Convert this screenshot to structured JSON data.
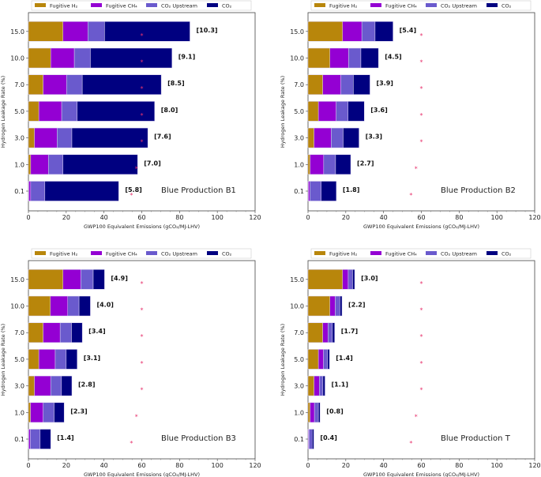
{
  "chart_data": [
    {
      "type": "bar",
      "orientation": "horizontal",
      "stacked": true,
      "title": "Blue Production B1",
      "xlabel": "GWP100 Equivalent Emissions (gCO₂/MJ-LHV)",
      "ylabel": "Hydrogen Leakage Rate (%)",
      "xlim": [
        0,
        120
      ],
      "xticks": [
        "0",
        "20",
        "40",
        "60",
        "80",
        "100",
        "120"
      ],
      "categories": [
        "0.1",
        "1.0",
        "3.0",
        "5.0",
        "7.0",
        "10.0",
        "15.0"
      ],
      "series": [
        {
          "name": "Fugitive H₂",
          "color": "#b8860b",
          "values": [
            0.2,
            1.2,
            3.2,
            5.5,
            7.8,
            11.8,
            18.3
          ]
        },
        {
          "name": "Fugitive CH₄",
          "color": "#9400d3",
          "values": [
            1.0,
            9.4,
            12.0,
            12.1,
            12.4,
            12.5,
            13.2
          ]
        },
        {
          "name": "CO₂ Upstream",
          "color": "#6a5acd",
          "values": [
            7.5,
            7.7,
            7.8,
            8.2,
            8.3,
            8.5,
            8.8
          ]
        },
        {
          "name": "CO₂",
          "color": "#000080",
          "values": [
            39.1,
            39.5,
            40.2,
            41.0,
            41.8,
            43.2,
            45.2
          ]
        }
      ],
      "bracket_labels": [
        "[5.8]",
        "[7.0]",
        "[7.6]",
        "[8.0]",
        "[8.5]",
        "[9.1]",
        "[10.3]"
      ],
      "markers": [
        54.5,
        57.2,
        60,
        60,
        60,
        60,
        60
      ],
      "marker_color": "#e8336d",
      "legend": "top"
    },
    {
      "type": "bar",
      "orientation": "horizontal",
      "stacked": true,
      "title": "Blue Production B2",
      "xlabel": "GWP100 Equivalent Emissions (gCO₂/MJ-LHV)",
      "ylabel": "Hydrogen Leakage Rate (%)",
      "xlim": [
        0,
        120
      ],
      "xticks": [
        "0",
        "20",
        "40",
        "60",
        "80",
        "100",
        "120"
      ],
      "categories": [
        "0.1",
        "1.0",
        "3.0",
        "5.0",
        "7.0",
        "10.0",
        "15.0"
      ],
      "series": [
        {
          "name": "Fugitive H₂",
          "color": "#b8860b",
          "values": [
            0.2,
            1.1,
            3.2,
            5.5,
            7.8,
            11.6,
            18.3
          ]
        },
        {
          "name": "Fugitive CH₄",
          "color": "#9400d3",
          "values": [
            0.8,
            7.2,
            9.1,
            9.4,
            9.6,
            9.9,
            10.2
          ]
        },
        {
          "name": "CO₂ Upstream",
          "color": "#6a5acd",
          "values": [
            6.0,
            6.3,
            6.3,
            6.3,
            6.6,
            6.5,
            7.0
          ]
        },
        {
          "name": "CO₂",
          "color": "#000080",
          "values": [
            8.0,
            8.0,
            8.4,
            8.6,
            8.8,
            9.3,
            9.5
          ]
        }
      ],
      "bracket_labels": [
        "[1.8]",
        "[2.7]",
        "[3.3]",
        "[3.6]",
        "[3.9]",
        "[4.5]",
        "[5.4]"
      ],
      "markers": [
        54.5,
        57.2,
        60,
        60,
        60,
        60,
        60
      ],
      "marker_color": "#e8336d",
      "legend": "top"
    },
    {
      "type": "bar",
      "orientation": "horizontal",
      "stacked": true,
      "title": "Blue Production B3",
      "xlabel": "GWP100 Equivalent Emissions (gCO₂/MJ-LHV)",
      "ylabel": "Hydrogen Leakage Rate (%)",
      "xlim": [
        0,
        120
      ],
      "xticks": [
        "0",
        "20",
        "40",
        "60",
        "80",
        "100",
        "120"
      ],
      "categories": [
        "0.1",
        "1.0",
        "3.0",
        "5.0",
        "7.0",
        "10.0",
        "15.0"
      ],
      "series": [
        {
          "name": "Fugitive H₂",
          "color": "#b8860b",
          "values": [
            0.2,
            1.1,
            3.2,
            5.5,
            7.8,
            11.6,
            18.3
          ]
        },
        {
          "name": "Fugitive CH₄",
          "color": "#9400d3",
          "values": [
            0.8,
            6.7,
            8.6,
            8.7,
            9.0,
            9.2,
            9.5
          ]
        },
        {
          "name": "CO₂ Upstream",
          "color": "#6a5acd",
          "values": [
            5.2,
            5.8,
            5.7,
            5.8,
            6.0,
            6.0,
            6.5
          ]
        },
        {
          "name": "CO₂",
          "color": "#000080",
          "values": [
            5.6,
            5.3,
            5.5,
            5.8,
            5.7,
            6.0,
            6.0
          ]
        }
      ],
      "bracket_labels": [
        "[1.4]",
        "[2.3]",
        "[2.8]",
        "[3.1]",
        "[3.4]",
        "[4.0]",
        "[4.9]"
      ],
      "markers": [
        54.5,
        57.2,
        60,
        60,
        60,
        60,
        60
      ],
      "marker_color": "#e8336d",
      "legend": "top"
    },
    {
      "type": "bar",
      "orientation": "horizontal",
      "stacked": true,
      "title": "Blue Production T",
      "xlabel": "GWP100 Equivalent Emissions (gCO₂/MJ-LHV)",
      "ylabel": "Hydrogen Leakage Rate (%)",
      "xlim": [
        0,
        120
      ],
      "xticks": [
        "0",
        "20",
        "40",
        "60",
        "80",
        "100",
        "120"
      ],
      "categories": [
        "0.1",
        "1.0",
        "3.0",
        "5.0",
        "7.0",
        "10.0",
        "15.0"
      ],
      "series": [
        {
          "name": "Fugitive H₂",
          "color": "#b8860b",
          "values": [
            0.2,
            1.1,
            3.2,
            5.5,
            7.8,
            11.6,
            18.3
          ]
        },
        {
          "name": "Fugitive CH₄",
          "color": "#9400d3",
          "values": [
            0.3,
            2.3,
            2.8,
            2.7,
            2.8,
            2.8,
            3.0
          ]
        },
        {
          "name": "CO₂ Upstream",
          "color": "#6a5acd",
          "values": [
            1.7,
            2.1,
            1.9,
            2.2,
            2.3,
            2.5,
            2.3
          ]
        },
        {
          "name": "CO₂",
          "color": "#000080",
          "values": [
            0.9,
            0.9,
            1.1,
            1.0,
            1.2,
            1.1,
            1.1
          ]
        }
      ],
      "bracket_labels": [
        "[0.4]",
        "[0.8]",
        "[1.1]",
        "[1.4]",
        "[1.7]",
        "[2.2]",
        "[3.0]"
      ],
      "markers": [
        54.5,
        57.2,
        60,
        60,
        60,
        60,
        60
      ],
      "marker_color": "#e8336d",
      "legend": "top"
    }
  ]
}
